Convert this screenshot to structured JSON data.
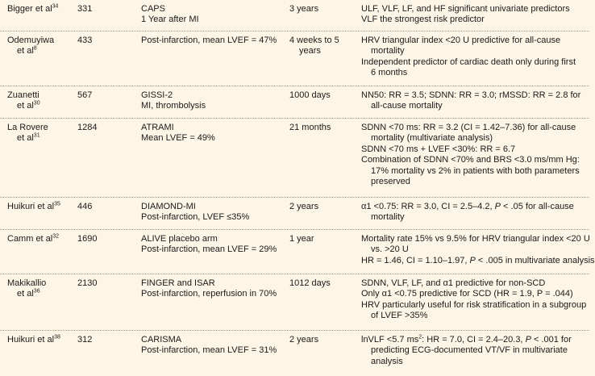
{
  "rows": [
    {
      "study": [
        "Bigger et al",
        "34"
      ],
      "n": "331",
      "population": [
        "CAPS",
        "1 Year after MI"
      ],
      "followup": [
        "3 years"
      ],
      "findings": [
        {
          "lines": [
            "ULF, VLF, LF, and HF significant univariate predictors"
          ]
        },
        {
          "lines": [
            "VLF the strongest risk predictor"
          ]
        }
      ]
    },
    {
      "study": [
        "Odemuyiwa",
        "et al",
        "8"
      ],
      "n": "433",
      "population": [
        "Post-infarction, mean LVEF = 47%"
      ],
      "followup": [
        "4 weeks to 5",
        "years"
      ],
      "findings": [
        {
          "lines": [
            "HRV triangular index <20 U predictive for all-cause",
            "mortality"
          ]
        },
        {
          "lines": [
            "Independent predictor of cardiac death only during first",
            "6 months"
          ]
        }
      ]
    },
    {
      "study": [
        "Zuanetti",
        "et al",
        "30"
      ],
      "n": "567",
      "population": [
        "GISSI-2",
        "MI, thrombolysis"
      ],
      "followup": [
        "1000 days"
      ],
      "findings": [
        {
          "lines": [
            "NN50: RR = 3.5; SDNN: RR = 3.0; rMSSD: RR = 2.8 for",
            "all-cause mortality"
          ]
        }
      ]
    },
    {
      "study": [
        "La Rovere",
        "et al",
        "31"
      ],
      "n": "1284",
      "population": [
        "ATRAMI",
        "Mean LVEF = 49%"
      ],
      "followup": [
        "21 months"
      ],
      "findings": [
        {
          "lines": [
            "SDNN <70 ms: RR = 3.2 (CI = 1.42–7.36) for all-cause",
            "mortality (multivariate analysis)"
          ]
        },
        {
          "lines": [
            "SDNN <70 ms + LVEF <30%: RR = 6.7"
          ]
        },
        {
          "lines": [
            "Combination of SDNN <70% and BRS <3.0 ms/mm Hg:",
            "17% mortality vs 2% in patients with both parameters",
            "preserved"
          ]
        }
      ]
    },
    {
      "study": [
        "Huikuri et al",
        "35"
      ],
      "n": "446",
      "population": [
        "DIAMOND-MI",
        "Post-infarction, LVEF ≤35%"
      ],
      "followup": [
        "2 years"
      ],
      "findings_html": [
        {
          "lines": [
            "α1 <0.75: RR = 3.0, CI = 2.5–4.2, ",
            "mortality"
          ],
          "p": "P",
          "tail": " < .05 for all-cause"
        }
      ]
    },
    {
      "study": [
        "Camm et al",
        "32"
      ],
      "n": "1690",
      "population": [
        "ALIVE placebo arm",
        "Post-infarction, mean LVEF = 29%"
      ],
      "followup": [
        "1 year"
      ],
      "findings": [
        {
          "lines": [
            "Mortality rate 15% vs 9.5% for HRV triangular index <20 U",
            "vs. >20 U"
          ]
        }
      ],
      "findings_p": {
        "head": "HR = 1.46, CI = 1.10–1.97, ",
        "p": "P",
        "tail": " < .005 in multivariate analysis"
      }
    },
    {
      "study": [
        "Makikallio",
        "et al",
        "36"
      ],
      "n": "2130",
      "population": [
        "FINGER and ISAR",
        "Post-infarction, reperfusion in 70%"
      ],
      "followup": [
        "1012 days"
      ],
      "findings": [
        {
          "lines": [
            "SDNN, VLF, LF, and α1 predictive for non-SCD"
          ]
        },
        {
          "lines": [
            "Only α1 <0.75 predictive for SCD (HR = 1.9, P = .044)"
          ]
        },
        {
          "lines": [
            "HRV particularly useful for risk stratification in a subgroup",
            "of LVEF >35%"
          ]
        }
      ]
    },
    {
      "study": [
        "Huikuri et al",
        "38"
      ],
      "n": "312",
      "population": [
        "CARISMA",
        "Post-infarction, mean LVEF = 31%"
      ],
      "followup": [
        "2 years"
      ],
      "findings_carisma": {
        "head": "lnVLF <5.7 ms",
        "sup": "2",
        "mid": ": HR = 7.0, CI = 2.4–20.3, ",
        "p": "P",
        "tail": " < .001 for",
        "rest": [
          "predicting ECG-documented VT/VF in multivariate",
          "analysis"
        ]
      }
    }
  ]
}
